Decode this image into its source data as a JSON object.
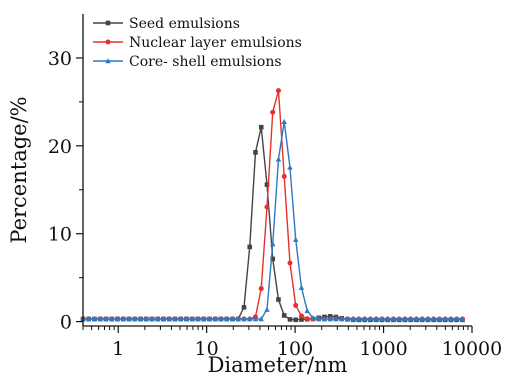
{
  "chart_data": {
    "type": "line",
    "xlabel": "Diameter/nm",
    "ylabel": "Percentage/%",
    "x_scale": "log",
    "xlim": [
      0.4,
      10000
    ],
    "ylim": [
      -0.5,
      35
    ],
    "x_ticks": [
      1,
      10,
      100,
      1000,
      10000
    ],
    "x_tick_labels": [
      "1",
      "10",
      "100",
      "1000",
      "10000"
    ],
    "y_ticks": [
      0,
      10,
      20,
      30
    ],
    "y_tick_labels": [
      "0",
      "10",
      "20",
      "30"
    ],
    "grid": false,
    "legend_position": "top-left",
    "series": [
      {
        "name": "Seed emulsions",
        "color": "#444444",
        "marker": "square",
        "points": [
          [
            0.4,
            0.3
          ],
          [
            25,
            0.3
          ],
          [
            28,
            3
          ],
          [
            32,
            11
          ],
          [
            36,
            20
          ],
          [
            40,
            23
          ],
          [
            45,
            20
          ],
          [
            50,
            13
          ],
          [
            56,
            7
          ],
          [
            63,
            3
          ],
          [
            71,
            1
          ],
          [
            80,
            0.4
          ],
          [
            90,
            0.2
          ],
          [
            100,
            0.2
          ],
          [
            160,
            0.3
          ],
          [
            200,
            0.5
          ],
          [
            250,
            0.6
          ],
          [
            300,
            0.5
          ],
          [
            360,
            0.3
          ],
          [
            450,
            0.2
          ],
          [
            8000,
            0.2
          ]
        ]
      },
      {
        "name": "Nuclear layer emulsions",
        "color": "#e8302a",
        "marker": "circle",
        "points": [
          [
            0.4,
            0.3
          ],
          [
            35,
            0.3
          ],
          [
            40,
            2
          ],
          [
            45,
            8
          ],
          [
            50,
            16
          ],
          [
            56,
            24
          ],
          [
            63,
            28
          ],
          [
            71,
            21
          ],
          [
            80,
            12
          ],
          [
            90,
            5
          ],
          [
            100,
            2
          ],
          [
            113,
            0.8
          ],
          [
            127,
            0.4
          ],
          [
            140,
            0.3
          ],
          [
            160,
            0.3
          ],
          [
            8000,
            0.3
          ]
        ]
      },
      {
        "name": "Core- shell emulsions",
        "color": "#2f78c4",
        "marker": "triangle",
        "points": [
          [
            0.4,
            0.3
          ],
          [
            45,
            0.3
          ],
          [
            50,
            2
          ],
          [
            56,
            9
          ],
          [
            63,
            17
          ],
          [
            71,
            23
          ],
          [
            80,
            22.5
          ],
          [
            90,
            16
          ],
          [
            100,
            10
          ],
          [
            113,
            5
          ],
          [
            127,
            2
          ],
          [
            143,
            0.8
          ],
          [
            160,
            0.4
          ],
          [
            180,
            0.3
          ],
          [
            8000,
            0.3
          ]
        ]
      }
    ]
  }
}
